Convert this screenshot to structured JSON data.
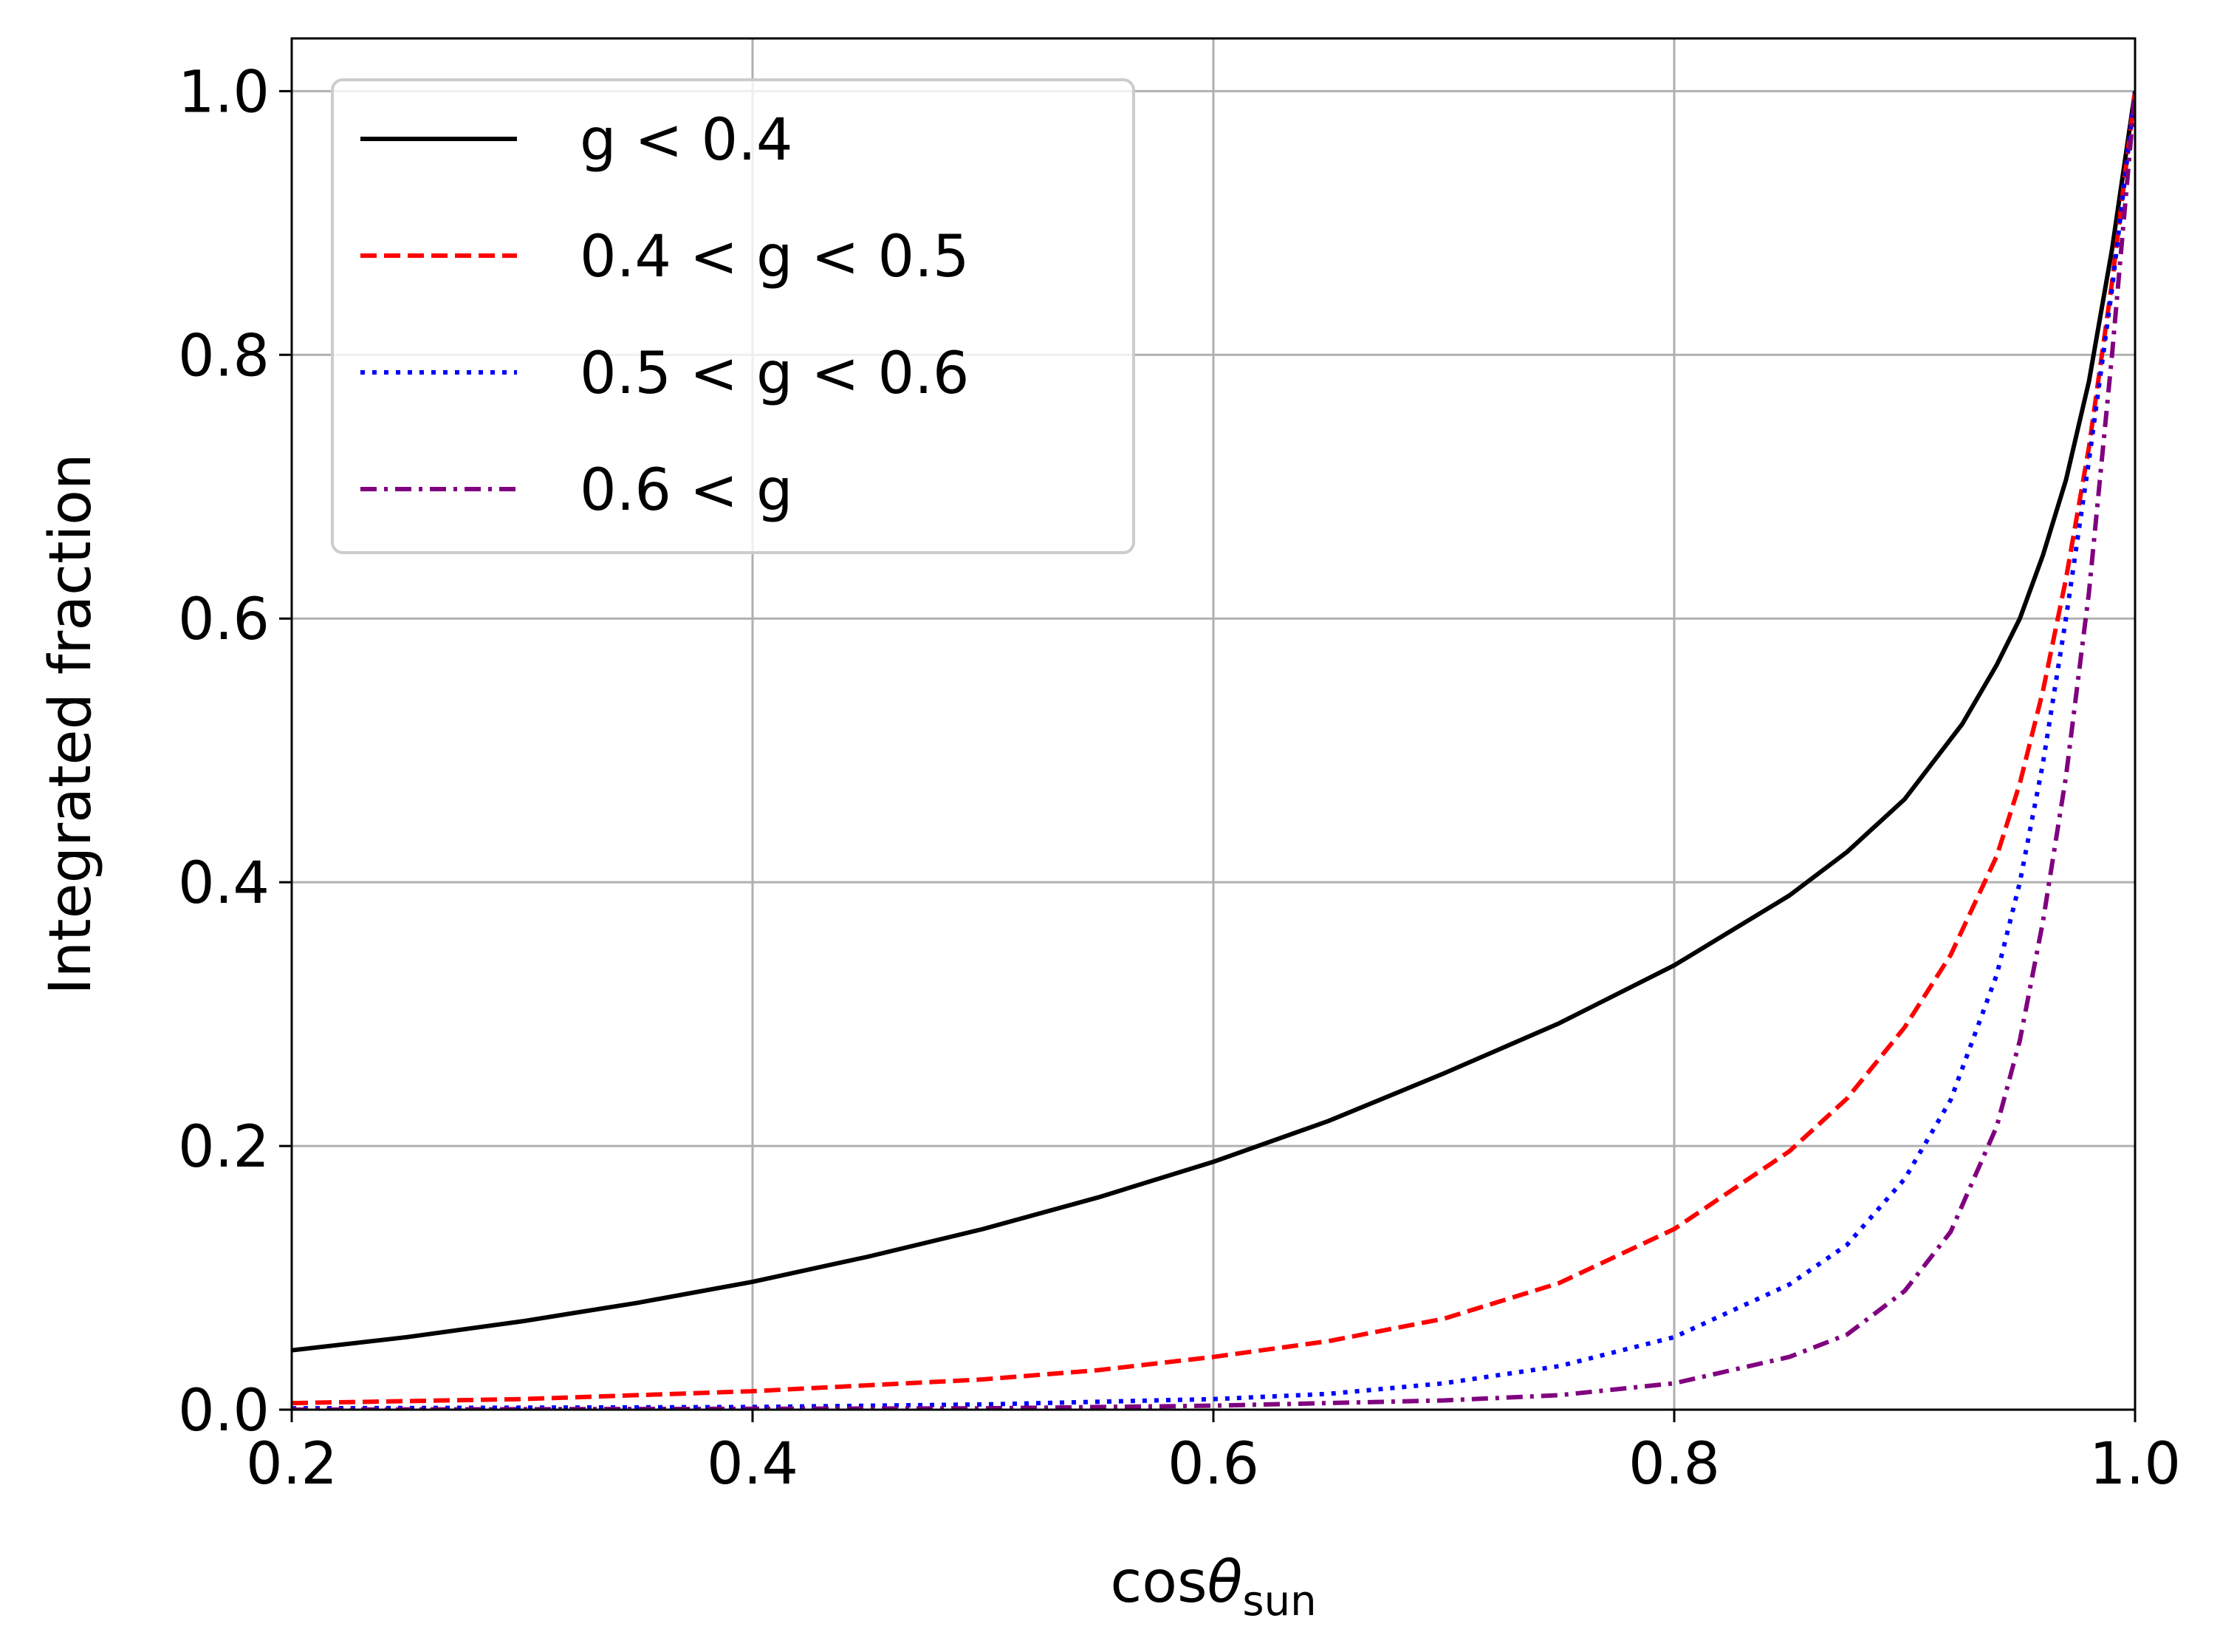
{
  "chart_data": {
    "type": "line",
    "title": "",
    "xlabel_main": "cos",
    "xlabel_theta": "θ",
    "xlabel_sub": "sun",
    "ylabel": "Integrated fraction",
    "xlim": [
      0.2,
      1.0
    ],
    "ylim": [
      0.0,
      1.04
    ],
    "grid": true,
    "legend_position": "upper-left",
    "x_ticks": [
      {
        "value": 0.2,
        "label": "0.2"
      },
      {
        "value": 0.4,
        "label": "0.4"
      },
      {
        "value": 0.6,
        "label": "0.6"
      },
      {
        "value": 0.8,
        "label": "0.8"
      },
      {
        "value": 1.0,
        "label": "1.0"
      }
    ],
    "y_ticks": [
      {
        "value": 0.0,
        "label": "0.0"
      },
      {
        "value": 0.2,
        "label": "0.2"
      },
      {
        "value": 0.4,
        "label": "0.4"
      },
      {
        "value": 0.6,
        "label": "0.6"
      },
      {
        "value": 0.8,
        "label": "0.8"
      },
      {
        "value": 1.0,
        "label": "1.0"
      }
    ],
    "series": [
      {
        "name": "g < 0.4",
        "color": "#000000",
        "dash": "solid",
        "points": [
          [
            0.2,
            0.045
          ],
          [
            0.25,
            0.055
          ],
          [
            0.3,
            0.067
          ],
          [
            0.35,
            0.081
          ],
          [
            0.4,
            0.097
          ],
          [
            0.45,
            0.116
          ],
          [
            0.5,
            0.137
          ],
          [
            0.55,
            0.161
          ],
          [
            0.6,
            0.188
          ],
          [
            0.65,
            0.219
          ],
          [
            0.7,
            0.255
          ],
          [
            0.75,
            0.293
          ],
          [
            0.8,
            0.337
          ],
          [
            0.85,
            0.39
          ],
          [
            0.875,
            0.423
          ],
          [
            0.9,
            0.463
          ],
          [
            0.925,
            0.52
          ],
          [
            0.94,
            0.565
          ],
          [
            0.95,
            0.6
          ],
          [
            0.96,
            0.648
          ],
          [
            0.97,
            0.705
          ],
          [
            0.98,
            0.78
          ],
          [
            0.99,
            0.88
          ],
          [
            1.0,
            1.0
          ]
        ]
      },
      {
        "name": "0.4 < g < 0.5",
        "color": "#ff0000",
        "dash": "dashed",
        "points": [
          [
            0.2,
            0.005
          ],
          [
            0.3,
            0.008
          ],
          [
            0.4,
            0.014
          ],
          [
            0.5,
            0.023
          ],
          [
            0.55,
            0.03
          ],
          [
            0.6,
            0.04
          ],
          [
            0.65,
            0.052
          ],
          [
            0.7,
            0.069
          ],
          [
            0.75,
            0.096
          ],
          [
            0.8,
            0.137
          ],
          [
            0.85,
            0.196
          ],
          [
            0.875,
            0.236
          ],
          [
            0.9,
            0.29
          ],
          [
            0.92,
            0.345
          ],
          [
            0.94,
            0.42
          ],
          [
            0.95,
            0.475
          ],
          [
            0.96,
            0.545
          ],
          [
            0.97,
            0.63
          ],
          [
            0.98,
            0.73
          ],
          [
            0.99,
            0.855
          ],
          [
            1.0,
            1.0
          ]
        ]
      },
      {
        "name": "0.5 < g < 0.6",
        "color": "#0000ff",
        "dash": "dotted",
        "points": [
          [
            0.2,
            0.001
          ],
          [
            0.4,
            0.002
          ],
          [
            0.5,
            0.004
          ],
          [
            0.6,
            0.008
          ],
          [
            0.65,
            0.012
          ],
          [
            0.7,
            0.02
          ],
          [
            0.75,
            0.033
          ],
          [
            0.8,
            0.055
          ],
          [
            0.85,
            0.095
          ],
          [
            0.875,
            0.125
          ],
          [
            0.9,
            0.175
          ],
          [
            0.92,
            0.235
          ],
          [
            0.94,
            0.33
          ],
          [
            0.95,
            0.4
          ],
          [
            0.96,
            0.49
          ],
          [
            0.97,
            0.6
          ],
          [
            0.98,
            0.72
          ],
          [
            0.99,
            0.85
          ],
          [
            1.0,
            1.0
          ]
        ]
      },
      {
        "name": "0.6 < g",
        "color": "#800080",
        "dash": "dashdot",
        "points": [
          [
            0.2,
            0.0
          ],
          [
            0.5,
            0.001
          ],
          [
            0.6,
            0.003
          ],
          [
            0.7,
            0.007
          ],
          [
            0.75,
            0.011
          ],
          [
            0.8,
            0.02
          ],
          [
            0.85,
            0.04
          ],
          [
            0.875,
            0.057
          ],
          [
            0.9,
            0.09
          ],
          [
            0.92,
            0.135
          ],
          [
            0.94,
            0.215
          ],
          [
            0.95,
            0.28
          ],
          [
            0.96,
            0.37
          ],
          [
            0.97,
            0.48
          ],
          [
            0.98,
            0.62
          ],
          [
            0.99,
            0.8
          ],
          [
            1.0,
            1.0
          ]
        ]
      }
    ]
  }
}
